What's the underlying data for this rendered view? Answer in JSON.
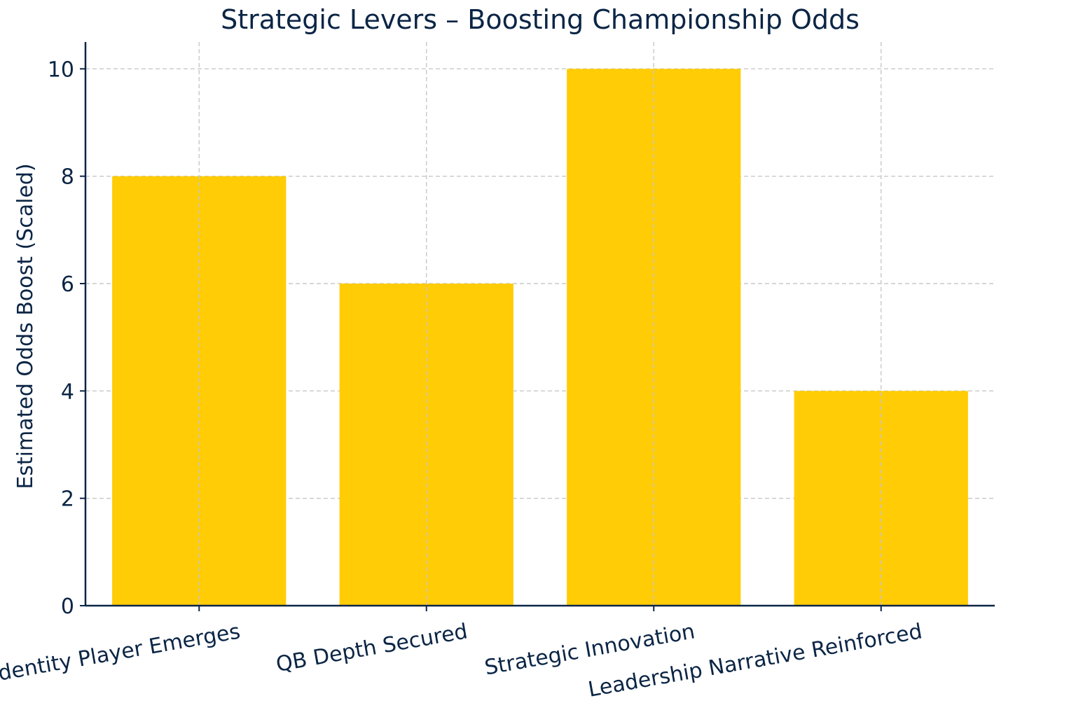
{
  "chart_data": {
    "type": "bar",
    "title": "Strategic Levers – Boosting Championship Odds",
    "xlabel": "",
    "ylabel": "Estimated Odds Boost (Scaled)",
    "categories": [
      "Identity Player Emerges",
      "QB Depth Secured",
      "Strategic Innovation",
      "Leadership Narrative Reinforced"
    ],
    "values": [
      8,
      6,
      10,
      4
    ],
    "yticks": [
      0,
      2,
      4,
      6,
      8,
      10
    ],
    "ylim": [
      0,
      10.5
    ],
    "grid": true,
    "x_tick_rotation_deg": -10,
    "colors": {
      "bar": "#FFCC05",
      "text": "#0B2545",
      "axis": "#0B2545",
      "grid": "#C8C8C8"
    }
  }
}
